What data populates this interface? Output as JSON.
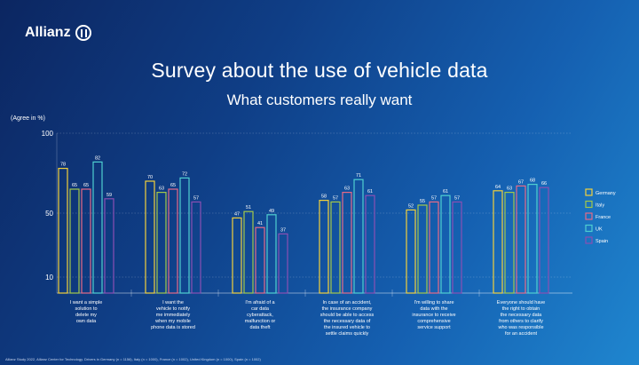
{
  "brand": {
    "name": "Allianz"
  },
  "title": "Survey about the use of vehicle data",
  "subtitle": "What customers really want",
  "footnote": "Allianz Study 2022, Allianz Center for Technology. Drivers in Germany (n = 1156), Italy (n = 1000), France (n = 1002), United Kingdom (n = 1000), Spain (n = 1002)",
  "colors": {
    "Germany": "#f2d03b",
    "Italy": "#a3c84a",
    "France": "#e56a87",
    "UK": "#4fcfd0",
    "Spain": "#8a4fb3"
  },
  "chart_data": {
    "type": "bar",
    "ylabel": "(Agree in %)",
    "yticks": [
      10,
      50,
      100
    ],
    "ylim": [
      0,
      100
    ],
    "legend_position": "right",
    "categories": [
      "I want a simple solution to delete my own data",
      "I want the vehicle to notify me immediately when my mobile phone data is stored",
      "I'm afraid of a car data cyberattack, malfunction or data theft",
      "In case of an accident, the insurance company should be able to access the necessary data of the insured vehicle to settle claims quickly",
      "I'm willing to share data with the insurance to receive comprehensive service support",
      "Everyone should have the right to obtain the necessary data from others to clarify who was responsible for an accident"
    ],
    "category_lines": [
      [
        "I want a simple",
        "solution to",
        "delete my",
        "own data"
      ],
      [
        "I want the",
        "vehicle to notify",
        "me immediately",
        "when my mobile",
        "phone data is stored"
      ],
      [
        "I'm afraid of a",
        "car data",
        "cyberattack,",
        "malfunction or",
        "data theft"
      ],
      [
        "In case of an accident,",
        "the insurance company",
        "should be able to access",
        "the necessary data of",
        "the insured vehicle to",
        "settle claims quickly"
      ],
      [
        "I'm willing to share",
        "data with the",
        "insurance to receive",
        "comprehensive",
        "service support"
      ],
      [
        "Everyone should have",
        "the right to obtain",
        "the necessary data",
        "from others to clarify",
        "who was responsible",
        "for an accident"
      ]
    ],
    "series": [
      {
        "name": "Germany",
        "values": [
          78,
          70,
          47,
          58,
          52,
          64
        ]
      },
      {
        "name": "Italy",
        "values": [
          65,
          63,
          51,
          57,
          55,
          63
        ]
      },
      {
        "name": "France",
        "values": [
          65,
          65,
          41,
          63,
          57,
          67
        ]
      },
      {
        "name": "UK",
        "values": [
          82,
          72,
          49,
          71,
          61,
          68
        ]
      },
      {
        "name": "Spain",
        "values": [
          59,
          57,
          37,
          61,
          57,
          66
        ]
      }
    ]
  }
}
